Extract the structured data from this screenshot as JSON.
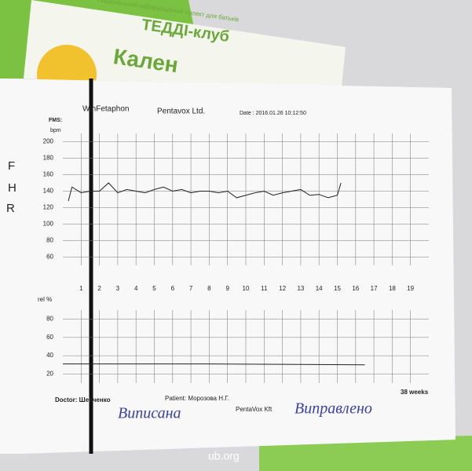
{
  "booklet": {
    "subtitle": "Національний інформаційний проект для батьків",
    "brand": "ТЕДДІ-клуб",
    "word": "Кален",
    "site": "ub.org"
  },
  "header": {
    "software": "WinFetaphon",
    "company": "Pentavox Ltd.",
    "date": "Date : 2016.01.26 10:12:50",
    "fms": "FMS:"
  },
  "side_labels": [
    "F",
    "H",
    "R"
  ],
  "fhr": {
    "unit": "bpm",
    "ylim": [
      50,
      210
    ],
    "yticks": [
      60,
      80,
      100,
      120,
      140,
      160,
      180,
      200
    ],
    "xlim": [
      0,
      20
    ],
    "xticks": [
      1,
      2,
      3,
      4,
      5,
      6,
      7,
      8,
      9,
      10,
      11,
      12,
      13,
      14,
      15,
      16,
      17,
      18,
      19
    ],
    "x": [
      0.3,
      0.5,
      1,
      1.5,
      2,
      2.5,
      3,
      3.5,
      4,
      4.5,
      5,
      5.5,
      6,
      6.5,
      7,
      7.5,
      8,
      8.5,
      9,
      9.5,
      10,
      10.5,
      11,
      11.5,
      12,
      12.5,
      13,
      13.5,
      14,
      14.5,
      15,
      15.2
    ],
    "values": [
      128,
      145,
      138,
      140,
      140,
      150,
      138,
      142,
      140,
      138,
      142,
      145,
      140,
      142,
      138,
      140,
      140,
      138,
      140,
      132,
      135,
      138,
      140,
      135,
      138,
      140,
      142,
      135,
      136,
      132,
      135,
      150
    ]
  },
  "toco": {
    "unit": "rel %",
    "ylim": [
      10,
      90
    ],
    "yticks": [
      20,
      40,
      60,
      80
    ],
    "xlim": [
      0,
      20
    ],
    "x": [
      0,
      8,
      16.5
    ],
    "values": [
      31,
      31,
      30
    ]
  },
  "footer": {
    "doctor": "Doctor: Шевченко",
    "patient": "Patient: Морозова Н.Г.",
    "weeks": "38  weeks",
    "vendor": "PentaVox Kft"
  },
  "handwriting": [
    "Виписана",
    "Виправлено"
  ]
}
